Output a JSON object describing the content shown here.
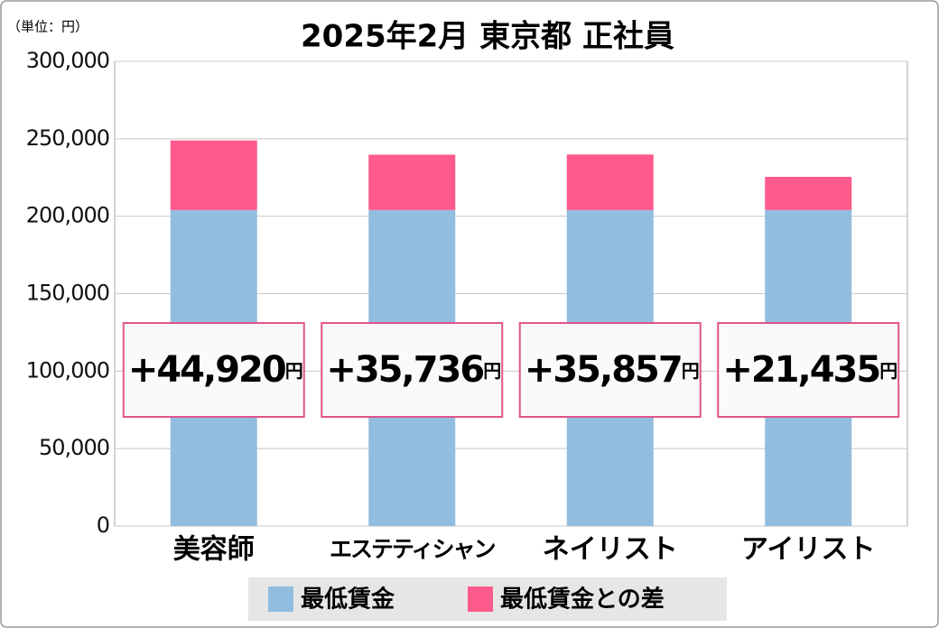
{
  "chart_data": {
    "type": "stacked-bar",
    "title": "2025年2月 東京都 正社員",
    "unit_label": "（単位：円）",
    "categories": [
      "美容師",
      "エステティシャン",
      "ネイリスト",
      "アイリスト"
    ],
    "series": [
      {
        "name": "最低賃金",
        "color": "#92bddf",
        "values": [
          204000,
          204000,
          204000,
          204000
        ]
      },
      {
        "name": "最低賃金との差",
        "color": "#fe5a8c",
        "values": [
          44920,
          35736,
          35857,
          21435
        ],
        "value_labels": [
          "+44,920",
          "+35,736",
          "+35,857",
          "+21,435"
        ]
      }
    ],
    "value_label_unit": "円",
    "ylim": [
      0,
      300000
    ],
    "yticks": [
      0,
      {
        "value": 50000,
        "label": "50,000"
      },
      {
        "value": 100000,
        "label": "100,000"
      },
      {
        "value": 150000,
        "label": "150,000"
      },
      {
        "value": 200000,
        "label": "200,000"
      },
      {
        "value": 250000,
        "label": "250,000"
      },
      {
        "value": 300000,
        "label": "300,000"
      }
    ],
    "grid": true
  }
}
